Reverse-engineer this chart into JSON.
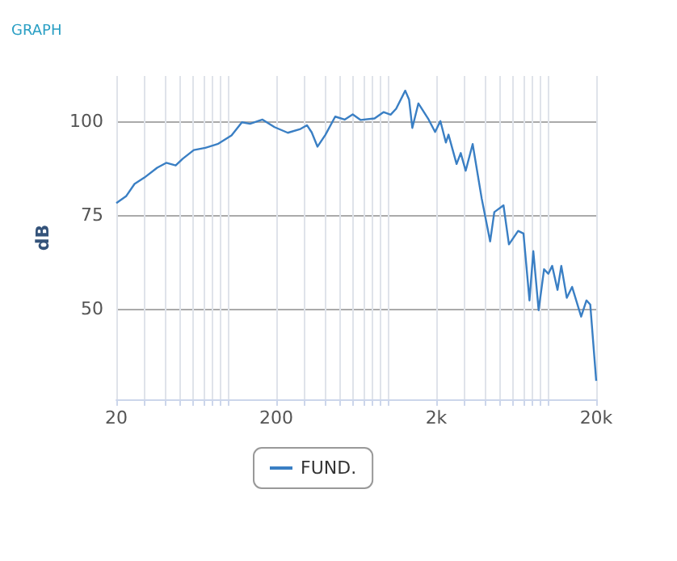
{
  "chart_data": {
    "type": "line",
    "title": "GRAPH",
    "ylabel": "dB",
    "xlim": [
      20,
      20000
    ],
    "ylim": [
      26,
      112
    ],
    "xticks": [
      20,
      {
        "value": 30,
        "label": null
      },
      {
        "value": 40,
        "label": null
      },
      {
        "value": 50,
        "label": null
      },
      {
        "value": 60,
        "label": null
      },
      {
        "value": 70,
        "label": null
      },
      {
        "value": 80,
        "label": null
      },
      {
        "value": 90,
        "label": null
      },
      {
        "value": 100,
        "label": null
      },
      200,
      {
        "value": 300,
        "label": null
      },
      {
        "value": 400,
        "label": null
      },
      {
        "value": 500,
        "label": null
      },
      {
        "value": 600,
        "label": null
      },
      {
        "value": 700,
        "label": null
      },
      {
        "value": 800,
        "label": null
      },
      {
        "value": 900,
        "label": null
      },
      {
        "value": 1000,
        "label": null
      },
      {
        "value": 2000,
        "label": "2k"
      },
      {
        "value": 3000,
        "label": null
      },
      {
        "value": 4000,
        "label": null
      },
      {
        "value": 5000,
        "label": null
      },
      {
        "value": 6000,
        "label": null
      },
      {
        "value": 7000,
        "label": null
      },
      {
        "value": 8000,
        "label": null
      },
      {
        "value": 9000,
        "label": null
      },
      {
        "value": 10000,
        "label": null
      },
      {
        "value": 20000,
        "label": "20k"
      }
    ],
    "yticks": [
      50,
      75,
      100
    ],
    "grid": true,
    "log": "x",
    "legend": "bottom",
    "marker": "none",
    "line_style": "solid",
    "series": [
      {
        "name": "FUND.",
        "color": "#3a7fc4",
        "x": [
          20,
          23,
          26,
          30,
          36,
          41,
          47,
          52,
          61,
          72,
          86,
          105,
          122,
          137,
          164,
          195,
          236,
          283,
          311,
          333,
          362,
          406,
          467,
          535,
          601,
          674,
          823,
          936,
          1037,
          1123,
          1280,
          1353,
          1417,
          1546,
          1777,
          1967,
          2123,
          2297,
          2386,
          2680,
          2845,
          3055,
          3378,
          3848,
          4345,
          4613,
          5266,
          5694,
          6501,
          7020,
          7653,
          8088,
          8730,
          9440,
          10040,
          10610,
          11460,
          12100,
          13090,
          14130,
          16100,
          17380,
          18360,
          20000
        ],
        "values": [
          78.2,
          80,
          83.3,
          85,
          87.6,
          88.9,
          88.2,
          90,
          92.3,
          92.9,
          93.9,
          96.2,
          99.7,
          99.3,
          100.4,
          98.4,
          96.9,
          97.9,
          98.9,
          97,
          93.2,
          96.4,
          101.2,
          100.4,
          101.8,
          100.3,
          100.7,
          102.4,
          101.7,
          103.3,
          108.1,
          105.7,
          98.2,
          104.7,
          100.7,
          97.1,
          100,
          94.3,
          96.4,
          88.6,
          91.5,
          86.8,
          93.9,
          79.4,
          68,
          75.8,
          77.6,
          67.2,
          70.8,
          70.1,
          52.3,
          65.4,
          49.7,
          60.6,
          59.4,
          61.5,
          55.1,
          61.5,
          53,
          55.9,
          48,
          52.3,
          51.2,
          30.9
        ]
      }
    ]
  }
}
